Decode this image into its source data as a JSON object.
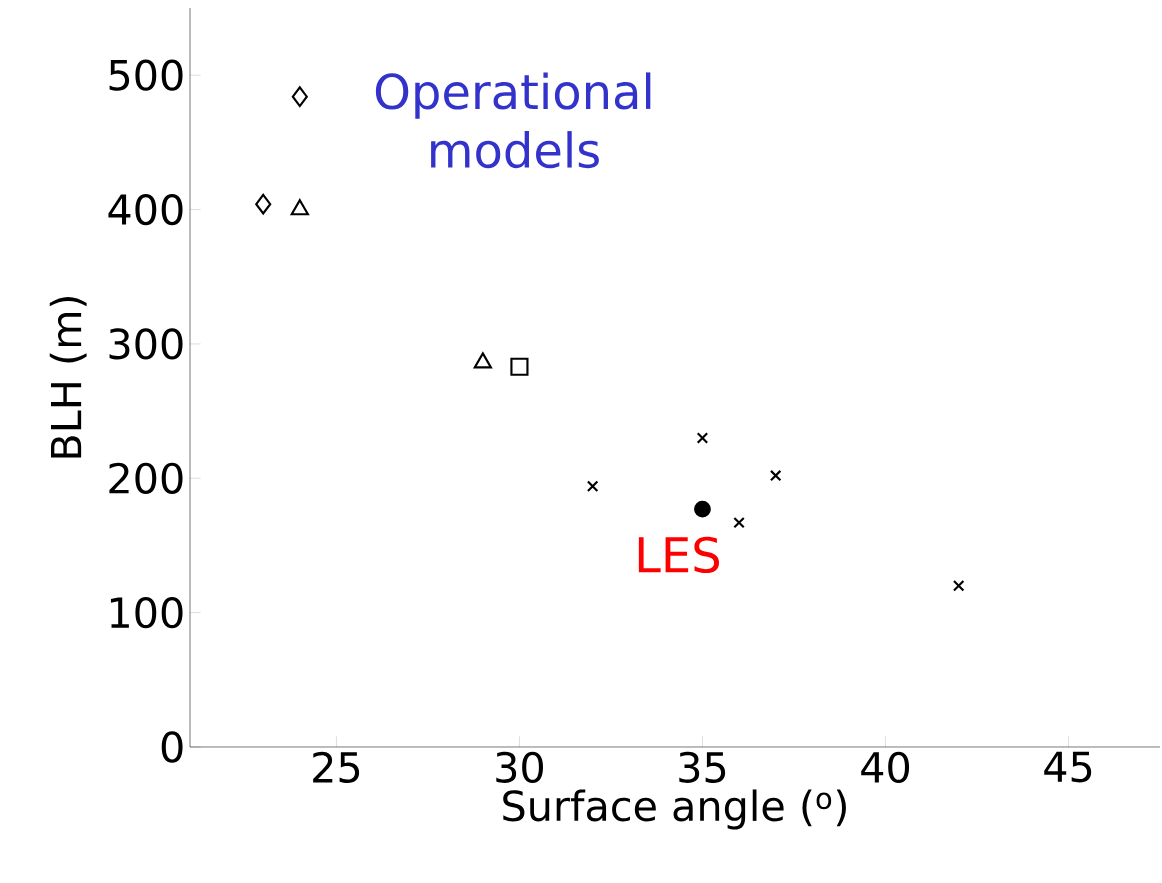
{
  "chart_data": {
    "type": "scatter",
    "xlabel": "Surface angle ($^{o}$)",
    "ylabel": "BLH (m)",
    "xlim": [
      21,
      47.5
    ],
    "xticks": [
      25,
      30,
      35,
      40,
      45
    ],
    "ylim": [
      0,
      550
    ],
    "yticks": [
      0,
      100,
      200,
      300,
      400,
      500
    ],
    "grid": false,
    "series": [
      {
        "color": "#000000",
        "marker": "diamond",
        "x": [
          24,
          23
        ],
        "values": [
          484,
          404
        ]
      },
      {
        "color": "#000000",
        "marker": "triangle",
        "x": [
          24,
          29
        ],
        "values": [
          400,
          286
        ]
      },
      {
        "color": "#000000",
        "marker": "square",
        "x": [
          30
        ],
        "values": [
          283
        ]
      },
      {
        "color": "#000000",
        "marker": "cross",
        "x": [
          32,
          35,
          37,
          36,
          42
        ],
        "values": [
          194,
          230,
          202,
          167,
          120
        ]
      },
      {
        "color": "#000000",
        "marker": "circle",
        "x": [
          35
        ],
        "values": [
          177
        ]
      }
    ],
    "annotations": [
      "Operational models",
      "LES"
    ]
  }
}
